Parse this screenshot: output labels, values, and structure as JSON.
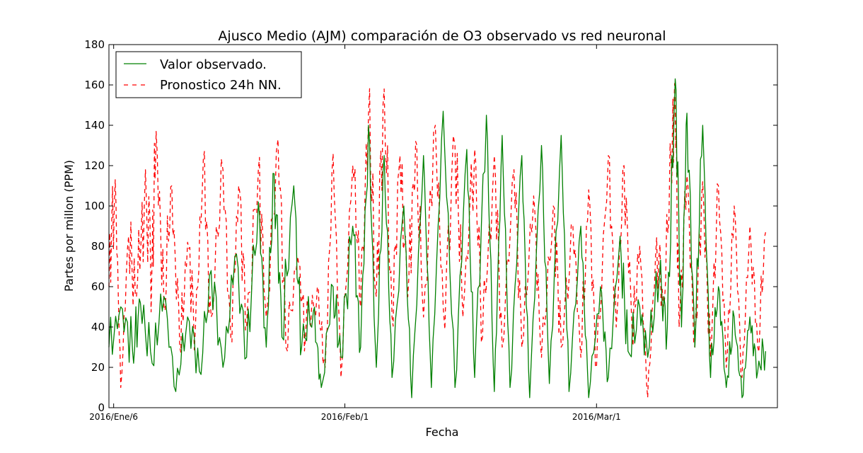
{
  "chart_data": {
    "type": "line",
    "title": "Ajusco Medio (AJM) comparación de O3 observado vs red neuronal",
    "xlabel": "Fecha",
    "ylabel": "Partes por millon (PPM)",
    "ylim": [
      0,
      180
    ],
    "yticks": [
      0,
      20,
      40,
      60,
      80,
      100,
      120,
      140,
      160,
      180
    ],
    "xlim_days": [
      0,
      85
    ],
    "xticks": [
      {
        "label": "2016/Ene/6",
        "day": 0.6
      },
      {
        "label": "2016/Feb/1",
        "day": 30
      },
      {
        "label": "2016/Mar/1",
        "day": 62
      }
    ],
    "legend_position": "top-left",
    "series": [
      {
        "name": "Valor observado.",
        "color": "#008000",
        "style": "solid",
        "peaks": [
          [
            0,
            30
          ],
          [
            1.5,
            50
          ],
          [
            3,
            28
          ],
          [
            4,
            52
          ],
          [
            5.5,
            22
          ],
          [
            7,
            55
          ],
          [
            8.5,
            8
          ],
          [
            10,
            45
          ],
          [
            11.5,
            18
          ],
          [
            13,
            68
          ],
          [
            14.5,
            20
          ],
          [
            16,
            75
          ],
          [
            17.5,
            25
          ],
          [
            19,
            102
          ],
          [
            20,
            30
          ],
          [
            21,
            116
          ],
          [
            22,
            35
          ],
          [
            23.5,
            110
          ],
          [
            24.5,
            30
          ],
          [
            26,
            48
          ],
          [
            27,
            10
          ],
          [
            28.5,
            60
          ],
          [
            29.5,
            25
          ],
          [
            31,
            90
          ],
          [
            32,
            30
          ],
          [
            33,
            140
          ],
          [
            34,
            20
          ],
          [
            35,
            125
          ],
          [
            36,
            15
          ],
          [
            37.5,
            100
          ],
          [
            38.5,
            5
          ],
          [
            40,
            125
          ],
          [
            41,
            10
          ],
          [
            42.5,
            147
          ],
          [
            44,
            10
          ],
          [
            45.5,
            128
          ],
          [
            46.5,
            15
          ],
          [
            48,
            145
          ],
          [
            49,
            8
          ],
          [
            50,
            135
          ],
          [
            51,
            10
          ],
          [
            52.5,
            125
          ],
          [
            53.5,
            5
          ],
          [
            55,
            130
          ],
          [
            56,
            12
          ],
          [
            57.5,
            135
          ],
          [
            58.5,
            8
          ],
          [
            60,
            90
          ],
          [
            61,
            5
          ],
          [
            62.5,
            60
          ],
          [
            63.5,
            15
          ],
          [
            65,
            85
          ],
          [
            66,
            28
          ],
          [
            67.5,
            50
          ],
          [
            68.5,
            25
          ],
          [
            70,
            65
          ],
          [
            71,
            40
          ],
          [
            72,
            163
          ],
          [
            72.8,
            40
          ],
          [
            73.5,
            146
          ],
          [
            74.5,
            30
          ],
          [
            75.5,
            140
          ],
          [
            76.5,
            15
          ],
          [
            77.5,
            60
          ],
          [
            78.5,
            10
          ],
          [
            79.5,
            45
          ],
          [
            80.5,
            5
          ],
          [
            81.5,
            45
          ],
          [
            82.5,
            18
          ],
          [
            83.5,
            28
          ]
        ]
      },
      {
        "name": "Pronostico 24h NN.",
        "color": "#ff0000",
        "style": "dashed",
        "peaks": [
          [
            0,
            60
          ],
          [
            0.8,
            113
          ],
          [
            1.5,
            10
          ],
          [
            2.5,
            85
          ],
          [
            3.5,
            55
          ],
          [
            4.5,
            100
          ],
          [
            5.5,
            75
          ],
          [
            6,
            137
          ],
          [
            7,
            50
          ],
          [
            8,
            110
          ],
          [
            9,
            30
          ],
          [
            10,
            82
          ],
          [
            11,
            40
          ],
          [
            12,
            123
          ],
          [
            13,
            45
          ],
          [
            14.5,
            118
          ],
          [
            15.5,
            35
          ],
          [
            16.5,
            110
          ],
          [
            17.5,
            40
          ],
          [
            19,
            118
          ],
          [
            20,
            45
          ],
          [
            21.5,
            133
          ],
          [
            22.5,
            30
          ],
          [
            24,
            75
          ],
          [
            25,
            35
          ],
          [
            26.5,
            60
          ],
          [
            27.5,
            20
          ],
          [
            28.5,
            126
          ],
          [
            29.5,
            15
          ],
          [
            31,
            120
          ],
          [
            32,
            50
          ],
          [
            33,
            145
          ],
          [
            34,
            55
          ],
          [
            35,
            158
          ],
          [
            36,
            45
          ],
          [
            37,
            125
          ],
          [
            38,
            55
          ],
          [
            39,
            132
          ],
          [
            40,
            45
          ],
          [
            41.5,
            140
          ],
          [
            42.5,
            50
          ],
          [
            44,
            130
          ],
          [
            45,
            45
          ],
          [
            46.5,
            128
          ],
          [
            47.5,
            35
          ],
          [
            49,
            125
          ],
          [
            50,
            30
          ],
          [
            51.5,
            118
          ],
          [
            52.5,
            30
          ],
          [
            54,
            105
          ],
          [
            55,
            25
          ],
          [
            56.5,
            100
          ],
          [
            57.5,
            30
          ],
          [
            59,
            90
          ],
          [
            60,
            25
          ],
          [
            61,
            108
          ],
          [
            62,
            20
          ],
          [
            63.5,
            125
          ],
          [
            64.5,
            40
          ],
          [
            65.5,
            120
          ],
          [
            66.5,
            40
          ],
          [
            67.5,
            80
          ],
          [
            68.5,
            5
          ],
          [
            69.5,
            75
          ],
          [
            70.5,
            50
          ],
          [
            71.5,
            120
          ],
          [
            72,
            150
          ],
          [
            72.5,
            40
          ],
          [
            73.5,
            115
          ],
          [
            74.5,
            30
          ],
          [
            75.5,
            112
          ],
          [
            76.5,
            25
          ],
          [
            77.5,
            110
          ],
          [
            78.5,
            20
          ],
          [
            79.5,
            100
          ],
          [
            80.5,
            15
          ],
          [
            81.5,
            90
          ],
          [
            82.5,
            30
          ],
          [
            83.5,
            87
          ]
        ]
      }
    ]
  }
}
